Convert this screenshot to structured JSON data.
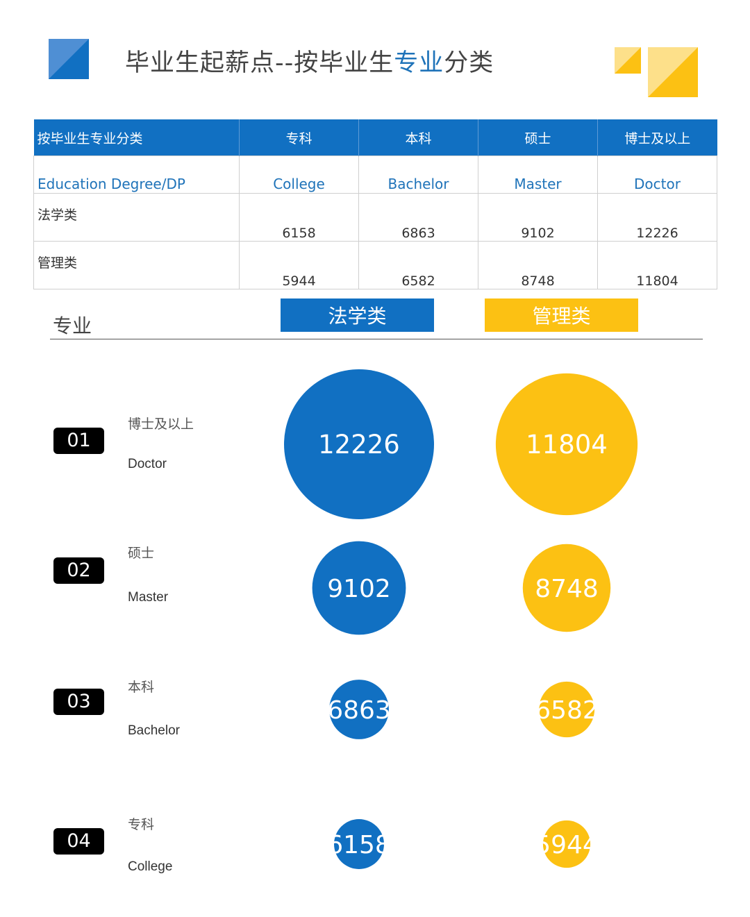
{
  "title": {
    "prefix": "毕业生起薪点--按毕业生",
    "highlight": "专业",
    "suffix": "分类"
  },
  "colors": {
    "law": "#1170c2",
    "management": "#fcc113",
    "header_blue": "#1170c2",
    "accent_text": "#1f73b9"
  },
  "table": {
    "headers": [
      "按毕业生专业分类",
      "专科",
      "本科",
      "硕士",
      "博士及以上"
    ],
    "english_row": [
      "Education  Degree/DP",
      "College",
      "Bachelor",
      "Master",
      "Doctor"
    ],
    "rows": [
      {
        "label": "法学类",
        "values": [
          "6158",
          "6863",
          "9102",
          "12226"
        ]
      },
      {
        "label": "管理类",
        "values": [
          "5944",
          "6582",
          "8748",
          "11804"
        ]
      }
    ]
  },
  "legend": {
    "axis_label": "专业",
    "law": "法学类",
    "management": "管理类"
  },
  "chart_data": {
    "type": "bubble",
    "categories": [
      {
        "rank": "01",
        "cn": "博士及以上",
        "en": "Doctor"
      },
      {
        "rank": "02",
        "cn": "硕士",
        "en": "Master"
      },
      {
        "rank": "03",
        "cn": "本科",
        "en": "Bachelor"
      },
      {
        "rank": "04",
        "cn": "专科",
        "en": "College"
      }
    ],
    "series": [
      {
        "name": "法学类",
        "color": "#1170c2",
        "values": [
          12226,
          9102,
          6863,
          6158
        ]
      },
      {
        "name": "管理类",
        "color": "#fcc113",
        "values": [
          11804,
          8748,
          6582,
          5944
        ]
      }
    ]
  }
}
